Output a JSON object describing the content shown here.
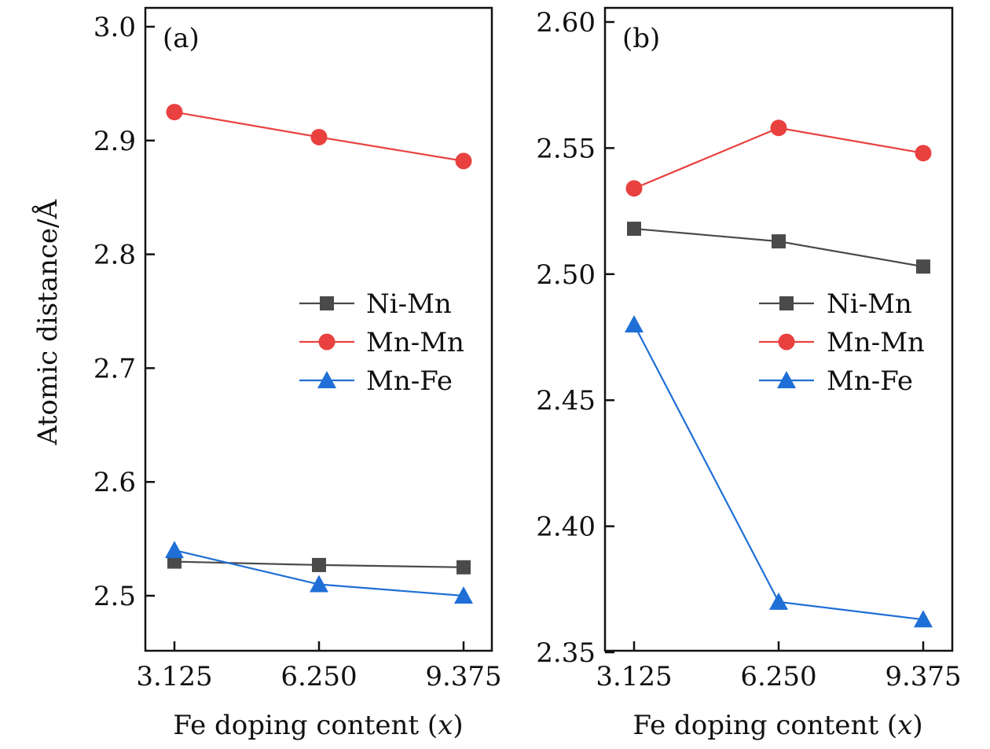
{
  "colors": {
    "ni_mn": "#4a4a4a",
    "mn_mn": "#e8413f",
    "mn_fe": "#1f6fd6"
  },
  "shared": {
    "xlabel_prefix": "Fe doping content (",
    "xlabel_var": "x",
    "xlabel_suffix": ")",
    "ylabel": "Atomic distance/Å"
  },
  "chart_data": [
    {
      "type": "line",
      "panel_label": "(a)",
      "x": [
        3.125,
        6.25,
        9.375
      ],
      "xtick_labels": [
        "3.125",
        "6.250",
        "9.375"
      ],
      "xlabel": "Fe doping content (x)",
      "ylabel": "Atomic distance/Å",
      "ylim": [
        2.475,
        3.02
      ],
      "yticks": [
        2.5,
        2.6,
        2.7,
        2.8,
        2.9,
        3.0
      ],
      "ytick_labels": [
        "2.5",
        "2.6",
        "2.7",
        "2.8",
        "2.9",
        "3.0"
      ],
      "legend_position": "center-right",
      "series": [
        {
          "name": "Ni-Mn",
          "marker": "square",
          "color": "#4a4a4a",
          "values": [
            2.53,
            2.527,
            2.525
          ]
        },
        {
          "name": "Mn-Mn",
          "marker": "circle",
          "color": "#e8413f",
          "values": [
            2.925,
            2.903,
            2.882
          ]
        },
        {
          "name": "Mn-Fe",
          "marker": "triangle",
          "color": "#1f6fd6",
          "values": [
            2.54,
            2.51,
            2.5
          ]
        }
      ]
    },
    {
      "type": "line",
      "panel_label": "(b)",
      "x": [
        3.125,
        6.25,
        9.375
      ],
      "xtick_labels": [
        "3.125",
        "6.250",
        "9.375"
      ],
      "xlabel": "Fe doping content (x)",
      "ylabel": "",
      "ylim": [
        2.35,
        2.605
      ],
      "yticks": [
        2.35,
        2.4,
        2.45,
        2.5,
        2.55,
        2.6
      ],
      "ytick_labels": [
        "2.35",
        "2.40",
        "2.45",
        "2.50",
        "2.55",
        "2.60"
      ],
      "legend_position": "center-right",
      "series": [
        {
          "name": "Ni-Mn",
          "marker": "square",
          "color": "#4a4a4a",
          "values": [
            2.518,
            2.513,
            2.503
          ]
        },
        {
          "name": "Mn-Mn",
          "marker": "circle",
          "color": "#e8413f",
          "values": [
            2.534,
            2.558,
            2.548
          ]
        },
        {
          "name": "Mn-Fe",
          "marker": "triangle",
          "color": "#1f6fd6",
          "values": [
            2.48,
            2.37,
            2.363
          ]
        }
      ]
    }
  ]
}
